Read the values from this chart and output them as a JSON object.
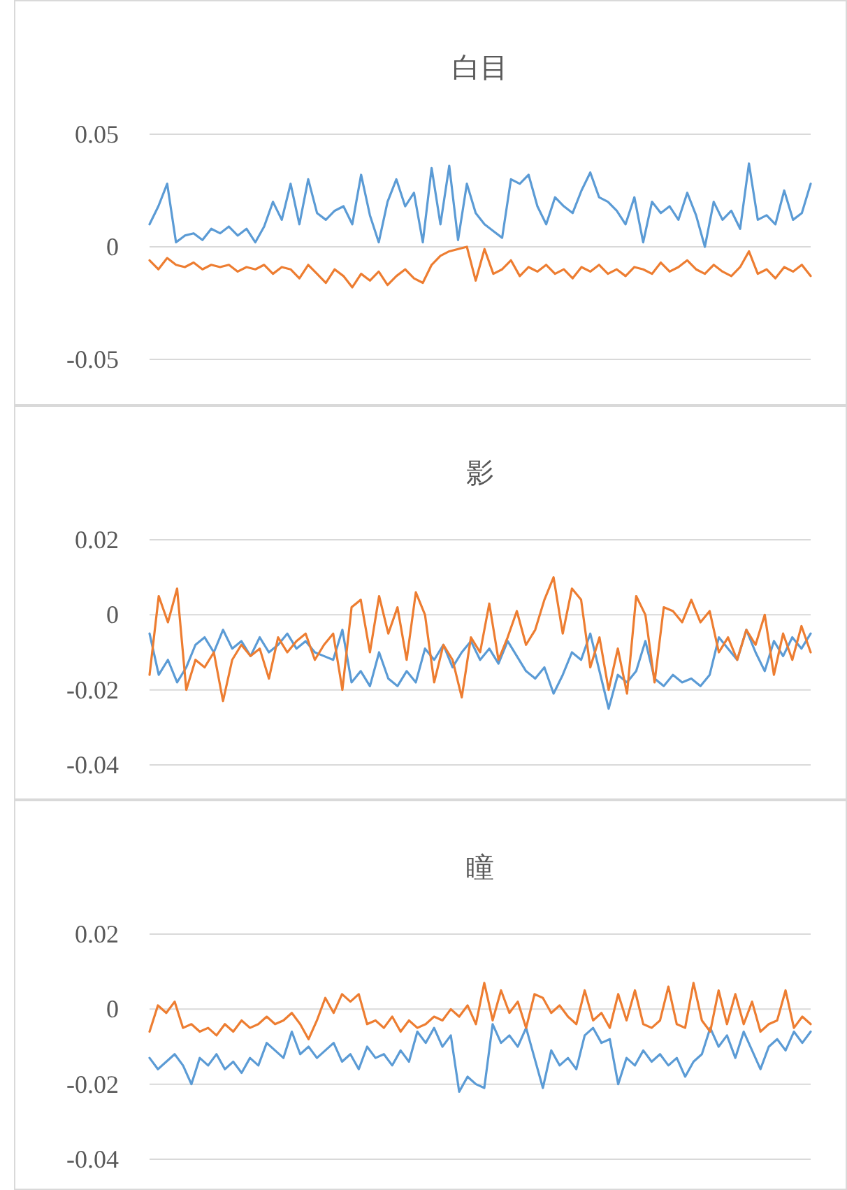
{
  "chart_data": [
    {
      "type": "line",
      "title": "白目",
      "ylim": [
        -0.05,
        0.05
      ],
      "yticks": [
        -0.05,
        0,
        0.05
      ],
      "grid": "y",
      "tick_labels": "y",
      "categories": [
        null,
        null,
        null,
        null,
        null,
        null,
        null,
        null,
        null,
        null,
        null,
        null,
        null,
        null,
        null,
        null,
        null,
        null,
        null,
        null,
        null,
        null,
        null,
        null,
        null,
        null,
        null,
        null,
        null,
        null,
        null,
        null,
        null,
        null,
        null,
        null,
        null,
        null,
        null,
        null,
        null,
        null,
        null,
        null,
        null,
        null,
        null,
        null,
        null,
        null,
        null,
        null,
        null,
        null,
        null,
        null,
        null,
        null,
        null,
        null,
        null,
        null,
        null,
        null,
        null,
        null,
        null,
        null,
        null,
        null,
        null,
        null,
        null,
        null,
        null,
        null
      ],
      "series": [
        {
          "color": "#5b9bd5",
          "values": [
            0.01,
            0.018,
            0.028,
            0.002,
            0.005,
            0.006,
            0.003,
            0.008,
            0.006,
            0.009,
            0.005,
            0.008,
            0.002,
            0.009,
            0.02,
            0.012,
            0.028,
            0.01,
            0.03,
            0.015,
            0.012,
            0.016,
            0.018,
            0.01,
            0.032,
            0.014,
            0.002,
            0.02,
            0.03,
            0.018,
            0.024,
            0.002,
            0.035,
            0.01,
            0.036,
            0.003,
            0.028,
            0.015,
            0.01,
            0.007,
            0.004,
            0.03,
            0.028,
            0.032,
            0.018,
            0.01,
            0.022,
            0.018,
            0.015,
            0.025,
            0.033,
            0.022,
            0.02,
            0.016,
            0.01,
            0.022,
            0.002,
            0.02,
            0.015,
            0.018,
            0.012,
            0.024,
            0.014,
            0.0,
            0.02,
            0.012,
            0.016,
            0.008,
            0.037,
            0.012,
            0.014,
            0.01,
            0.025,
            0.012,
            0.015,
            0.028
          ]
        },
        {
          "color": "#ed7d31",
          "values": [
            -0.006,
            -0.01,
            -0.005,
            -0.008,
            -0.009,
            -0.007,
            -0.01,
            -0.008,
            -0.009,
            -0.008,
            -0.011,
            -0.009,
            -0.01,
            -0.008,
            -0.012,
            -0.009,
            -0.01,
            -0.014,
            -0.008,
            -0.012,
            -0.016,
            -0.01,
            -0.013,
            -0.018,
            -0.012,
            -0.015,
            -0.011,
            -0.017,
            -0.013,
            -0.01,
            -0.014,
            -0.016,
            -0.008,
            -0.004,
            -0.002,
            -0.001,
            0,
            -0.015,
            -0.001,
            -0.012,
            -0.01,
            -0.006,
            -0.013,
            -0.009,
            -0.011,
            -0.008,
            -0.012,
            -0.01,
            -0.014,
            -0.009,
            -0.011,
            -0.008,
            -0.012,
            -0.01,
            -0.013,
            -0.009,
            -0.01,
            -0.012,
            -0.007,
            -0.011,
            -0.009,
            -0.006,
            -0.01,
            -0.012,
            -0.008,
            -0.011,
            -0.013,
            -0.009,
            -0.002,
            -0.012,
            -0.01,
            -0.014,
            -0.009,
            -0.011,
            -0.008,
            -0.013
          ]
        }
      ]
    },
    {
      "type": "line",
      "title": "影",
      "ylim": [
        -0.04,
        0.02
      ],
      "yticks": [
        -0.04,
        -0.02,
        0,
        0.02
      ],
      "grid": "y",
      "tick_labels": "y",
      "categories": [
        null,
        null,
        null,
        null,
        null,
        null,
        null,
        null,
        null,
        null,
        null,
        null,
        null,
        null,
        null,
        null,
        null,
        null,
        null,
        null,
        null,
        null,
        null,
        null,
        null,
        null,
        null,
        null,
        null,
        null,
        null,
        null,
        null,
        null,
        null,
        null,
        null,
        null,
        null,
        null,
        null,
        null,
        null,
        null,
        null,
        null,
        null,
        null,
        null,
        null,
        null,
        null,
        null,
        null,
        null,
        null,
        null,
        null,
        null,
        null,
        null,
        null,
        null,
        null,
        null,
        null,
        null,
        null,
        null,
        null,
        null,
        null,
        null
      ],
      "series": [
        {
          "color": "#5b9bd5",
          "values": [
            -0.005,
            -0.016,
            -0.012,
            -0.018,
            -0.014,
            -0.008,
            -0.006,
            -0.01,
            -0.004,
            -0.009,
            -0.007,
            -0.011,
            -0.006,
            -0.01,
            -0.008,
            -0.005,
            -0.009,
            -0.007,
            -0.01,
            -0.011,
            -0.012,
            -0.004,
            -0.018,
            -0.015,
            -0.019,
            -0.01,
            -0.017,
            -0.019,
            -0.015,
            -0.018,
            -0.009,
            -0.012,
            -0.008,
            -0.014,
            -0.01,
            -0.007,
            -0.012,
            -0.009,
            -0.013,
            -0.007,
            -0.011,
            -0.015,
            -0.017,
            -0.014,
            -0.021,
            -0.016,
            -0.01,
            -0.012,
            -0.005,
            -0.015,
            -0.025,
            -0.016,
            -0.018,
            -0.015,
            -0.007,
            -0.017,
            -0.019,
            -0.016,
            -0.018,
            -0.017,
            -0.019,
            -0.016,
            -0.006,
            -0.009,
            -0.012,
            -0.004,
            -0.01,
            -0.015,
            -0.007,
            -0.011,
            -0.006,
            -0.009,
            -0.005
          ]
        },
        {
          "color": "#ed7d31",
          "values": [
            -0.016,
            0.005,
            -0.002,
            0.007,
            -0.02,
            -0.012,
            -0.014,
            -0.01,
            -0.023,
            -0.012,
            -0.008,
            -0.011,
            -0.009,
            -0.017,
            -0.006,
            -0.01,
            -0.007,
            -0.005,
            -0.012,
            -0.008,
            -0.005,
            -0.02,
            0.002,
            0.004,
            -0.01,
            0.005,
            -0.005,
            0.002,
            -0.012,
            0.006,
            0.0,
            -0.018,
            -0.008,
            -0.012,
            -0.022,
            -0.006,
            -0.01,
            0.003,
            -0.012,
            -0.006,
            0.001,
            -0.008,
            -0.004,
            0.004,
            0.01,
            -0.005,
            0.007,
            0.004,
            -0.014,
            -0.006,
            -0.02,
            -0.009,
            -0.021,
            0.005,
            0.0,
            -0.018,
            0.002,
            0.001,
            -0.002,
            0.004,
            -0.002,
            0.001,
            -0.01,
            -0.006,
            -0.012,
            -0.004,
            -0.008,
            0.0,
            -0.016,
            -0.005,
            -0.012,
            -0.003,
            -0.01
          ]
        }
      ]
    },
    {
      "type": "line",
      "title": "瞳",
      "ylim": [
        -0.04,
        0.02
      ],
      "yticks": [
        -0.04,
        -0.02,
        0,
        0.02
      ],
      "grid": "y",
      "tick_labels": "y",
      "categories": [
        null,
        null,
        null,
        null,
        null,
        null,
        null,
        null,
        null,
        null,
        null,
        null,
        null,
        null,
        null,
        null,
        null,
        null,
        null,
        null,
        null,
        null,
        null,
        null,
        null,
        null,
        null,
        null,
        null,
        null,
        null,
        null,
        null,
        null,
        null,
        null,
        null,
        null,
        null,
        null,
        null,
        null,
        null,
        null,
        null,
        null,
        null,
        null,
        null,
        null,
        null,
        null,
        null,
        null,
        null,
        null,
        null,
        null,
        null,
        null,
        null,
        null,
        null,
        null,
        null,
        null,
        null,
        null,
        null,
        null,
        null,
        null,
        null,
        null,
        null,
        null,
        null,
        null,
        null,
        null
      ],
      "series": [
        {
          "color": "#5b9bd5",
          "values": [
            -0.013,
            -0.016,
            -0.014,
            -0.012,
            -0.015,
            -0.02,
            -0.013,
            -0.015,
            -0.012,
            -0.016,
            -0.014,
            -0.017,
            -0.013,
            -0.015,
            -0.009,
            -0.011,
            -0.013,
            -0.006,
            -0.012,
            -0.01,
            -0.013,
            -0.011,
            -0.009,
            -0.014,
            -0.012,
            -0.016,
            -0.01,
            -0.013,
            -0.012,
            -0.015,
            -0.011,
            -0.014,
            -0.006,
            -0.009,
            -0.005,
            -0.01,
            -0.007,
            -0.022,
            -0.018,
            -0.02,
            -0.021,
            -0.004,
            -0.009,
            -0.007,
            -0.01,
            -0.005,
            -0.013,
            -0.021,
            -0.011,
            -0.015,
            -0.013,
            -0.016,
            -0.007,
            -0.005,
            -0.009,
            -0.008,
            -0.02,
            -0.013,
            -0.015,
            -0.011,
            -0.014,
            -0.012,
            -0.015,
            -0.013,
            -0.018,
            -0.014,
            -0.012,
            -0.005,
            -0.01,
            -0.007,
            -0.013,
            -0.006,
            -0.011,
            -0.016,
            -0.01,
            -0.008,
            -0.011,
            -0.006,
            -0.009,
            -0.006
          ]
        },
        {
          "color": "#ed7d31",
          "values": [
            -0.006,
            0.001,
            -0.001,
            0.002,
            -0.005,
            -0.004,
            -0.006,
            -0.005,
            -0.007,
            -0.004,
            -0.006,
            -0.003,
            -0.005,
            -0.004,
            -0.002,
            -0.004,
            -0.003,
            -0.001,
            -0.004,
            -0.008,
            -0.003,
            0.003,
            -0.001,
            0.004,
            0.002,
            0.004,
            -0.004,
            -0.003,
            -0.005,
            -0.002,
            -0.006,
            -0.003,
            -0.005,
            -0.004,
            -0.002,
            -0.003,
            0.0,
            -0.002,
            0.001,
            -0.004,
            0.007,
            -0.003,
            0.005,
            -0.001,
            0.002,
            -0.005,
            0.004,
            0.003,
            -0.001,
            0.001,
            -0.002,
            -0.004,
            0.005,
            -0.003,
            -0.001,
            -0.005,
            0.004,
            -0.003,
            0.005,
            -0.004,
            -0.005,
            -0.003,
            0.006,
            -0.004,
            -0.005,
            0.007,
            -0.003,
            -0.006,
            0.005,
            -0.004,
            0.004,
            -0.004,
            0.002,
            -0.006,
            -0.004,
            -0.003,
            0.005,
            -0.005,
            -0.002,
            -0.004
          ]
        }
      ]
    }
  ]
}
